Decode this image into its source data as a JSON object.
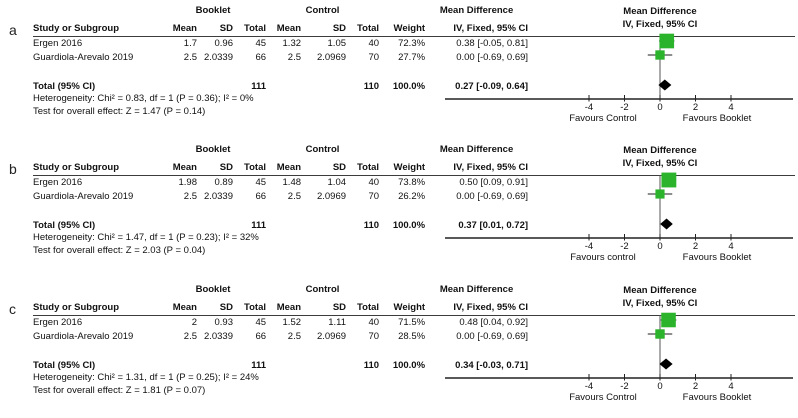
{
  "colors": {
    "square": "#2bb32b",
    "diamond": "#000000",
    "whisker": "#4a4a4a",
    "axis": "#222222"
  },
  "shared": {
    "groups": {
      "booklet": "Booklet",
      "control": "Control",
      "md": "Mean Difference"
    },
    "plot_header": {
      "line1": "Mean Difference",
      "line2": "IV, Fixed, 95% CI"
    },
    "columns": {
      "study": "Study or Subgroup",
      "mean": "Mean",
      "sd": "SD",
      "total": "Total",
      "weight": "Weight",
      "ci": "IV, Fixed, 95% CI"
    }
  },
  "panels": [
    {
      "label": "a",
      "rows": [
        {
          "study": "Ergen 2016",
          "b_mean": "1.7",
          "b_sd": "0.96",
          "b_total": "45",
          "c_mean": "1.32",
          "c_sd": "1.05",
          "c_total": "40",
          "weight": "72.3%",
          "ci_text": "0.38 [-0.05, 0.81]"
        },
        {
          "study": "Guardiola-Arevalo 2019",
          "b_mean": "2.5",
          "b_sd": "2.0339",
          "b_total": "66",
          "c_mean": "2.5",
          "c_sd": "2.0969",
          "c_total": "70",
          "weight": "27.7%",
          "ci_text": "0.00 [-0.69, 0.69]"
        }
      ],
      "total": {
        "label": "Total (95% CI)",
        "b_total": "111",
        "c_total": "110",
        "weight": "100.0%",
        "ci_text": "0.27 [-0.09, 0.64]"
      },
      "heterogeneity": "Heterogeneity: Chi² = 0.83, df = 1 (P = 0.36); I² = 0%",
      "overall_effect": "Test for overall effect: Z = 1.47 (P = 0.14)"
    },
    {
      "label": "b",
      "rows": [
        {
          "study": "Ergen 2016",
          "b_mean": "1.98",
          "b_sd": "0.89",
          "b_total": "45",
          "c_mean": "1.48",
          "c_sd": "1.04",
          "c_total": "40",
          "weight": "73.8%",
          "ci_text": "0.50 [0.09, 0.91]"
        },
        {
          "study": "Guardiola-Arevalo 2019",
          "b_mean": "2.5",
          "b_sd": "2.0339",
          "b_total": "66",
          "c_mean": "2.5",
          "c_sd": "2.0969",
          "c_total": "70",
          "weight": "26.2%",
          "ci_text": "0.00 [-0.69, 0.69]"
        }
      ],
      "total": {
        "label": "Total (95% CI)",
        "b_total": "111",
        "c_total": "110",
        "weight": "100.0%",
        "ci_text": "0.37 [0.01, 0.72]"
      },
      "heterogeneity": "Heterogeneity: Chi² = 1.47, df = 1 (P = 0.23); I² = 32%",
      "overall_effect": "Test for overall effect: Z = 2.03 (P = 0.04)"
    },
    {
      "label": "c",
      "rows": [
        {
          "study": "Ergen 2016",
          "b_mean": "2",
          "b_sd": "0.93",
          "b_total": "45",
          "c_mean": "1.52",
          "c_sd": "1.11",
          "c_total": "40",
          "weight": "71.5%",
          "ci_text": "0.48 [0.04, 0.92]"
        },
        {
          "study": "Guardiola-Arevalo 2019",
          "b_mean": "2.5",
          "b_sd": "2.0339",
          "b_total": "66",
          "c_mean": "2.5",
          "c_sd": "2.0969",
          "c_total": "70",
          "weight": "28.5%",
          "ci_text": "0.00 [-0.69, 0.69]"
        }
      ],
      "total": {
        "label": "Total (95% CI)",
        "b_total": "111",
        "c_total": "110",
        "weight": "100.0%",
        "ci_text": "0.34 [-0.03, 0.71]"
      },
      "heterogeneity": "Heterogeneity: Chi² = 1.31, df = 1 (P = 0.25); I² = 24%",
      "overall_effect": "Test for overall effect: Z = 1.81 (P = 0.07)"
    }
  ],
  "chart_data": [
    {
      "type": "forest",
      "panel": "a",
      "effect_measure": "Mean Difference, IV, Fixed, 95% CI",
      "x_ticks": [
        -4,
        -2,
        0,
        2,
        4
      ],
      "xlim": [
        -6,
        7.5
      ],
      "xlabel_left": "Favours Control",
      "xlabel_right": "Favours Booklet",
      "studies": [
        {
          "name": "Ergen 2016",
          "md": 0.38,
          "ci": [
            -0.05,
            0.81
          ],
          "weight": 72.3
        },
        {
          "name": "Guardiola-Arevalo 2019",
          "md": 0.0,
          "ci": [
            -0.69,
            0.69
          ],
          "weight": 27.7
        }
      ],
      "total": {
        "md": 0.27,
        "ci": [
          -0.09,
          0.64
        ]
      }
    },
    {
      "type": "forest",
      "panel": "b",
      "effect_measure": "Mean Difference, IV, Fixed, 95% CI",
      "x_ticks": [
        -4,
        -2,
        0,
        2,
        4
      ],
      "xlim": [
        -6,
        7.5
      ],
      "xlabel_left": "Favours control",
      "xlabel_right": "Favours Booklet",
      "studies": [
        {
          "name": "Ergen 2016",
          "md": 0.5,
          "ci": [
            0.09,
            0.91
          ],
          "weight": 73.8
        },
        {
          "name": "Guardiola-Arevalo 2019",
          "md": 0.0,
          "ci": [
            -0.69,
            0.69
          ],
          "weight": 26.2
        }
      ],
      "total": {
        "md": 0.37,
        "ci": [
          0.01,
          0.72
        ]
      }
    },
    {
      "type": "forest",
      "panel": "c",
      "effect_measure": "Mean Difference, IV, Fixed, 95% CI",
      "x_ticks": [
        -4,
        -2,
        0,
        2,
        4
      ],
      "xlim": [
        -6,
        7.5
      ],
      "xlabel_left": "Favours Control",
      "xlabel_right": "Favours Booklet",
      "studies": [
        {
          "name": "Ergen 2016",
          "md": 0.48,
          "ci": [
            0.04,
            0.92
          ],
          "weight": 71.5
        },
        {
          "name": "Guardiola-Arevalo 2019",
          "md": 0.0,
          "ci": [
            -0.69,
            0.69
          ],
          "weight": 28.5
        }
      ],
      "total": {
        "md": 0.34,
        "ci": [
          -0.03,
          0.71
        ]
      }
    }
  ]
}
